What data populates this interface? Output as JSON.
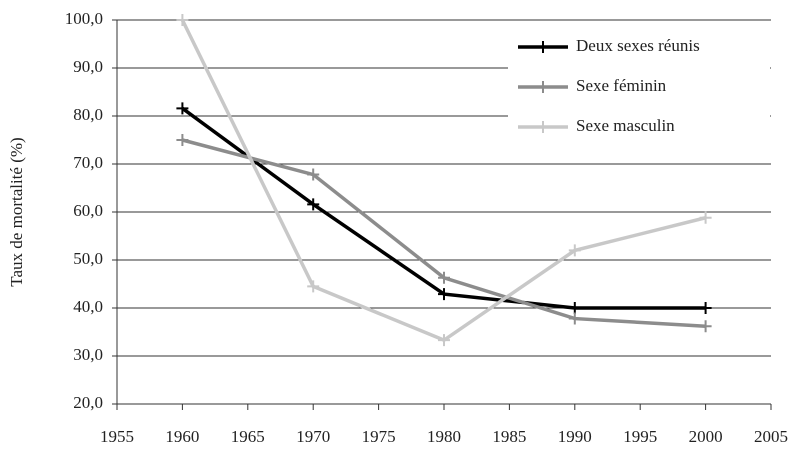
{
  "chart_data": {
    "type": "line",
    "y_label": "Taux de mortalité (%)",
    "x": [
      1960,
      1970,
      1980,
      1990,
      2000
    ],
    "series": [
      {
        "name": "Deux sexes réunis",
        "color": "#000000",
        "values": [
          81.6,
          61.6,
          42.9,
          40.0,
          40.0
        ]
      },
      {
        "name": "Sexe féminin",
        "color": "#8c8c8c",
        "values": [
          75.0,
          67.8,
          46.3,
          37.8,
          36.2
        ]
      },
      {
        "name": "Sexe masculin",
        "color": "#c8c8c8",
        "values": [
          100.0,
          44.5,
          33.3,
          52.0,
          58.8
        ]
      }
    ],
    "xlim": [
      1955,
      2005
    ],
    "xticks": [
      1955,
      1960,
      1965,
      1970,
      1975,
      1980,
      1985,
      1990,
      1995,
      2000,
      2005
    ],
    "ylim": [
      20,
      100
    ],
    "yticks": [
      {
        "value": 20,
        "label": "20,0"
      },
      {
        "value": 30,
        "label": "30,0"
      },
      {
        "value": 40,
        "label": "40,0"
      },
      {
        "value": 50,
        "label": "50,0"
      },
      {
        "value": 60,
        "label": "60,0"
      },
      {
        "value": 70,
        "label": "70,0"
      },
      {
        "value": 80,
        "label": "80,0"
      },
      {
        "value": 90,
        "label": "90,0"
      },
      {
        "value": 100,
        "label": "100,0"
      }
    ],
    "grid": true,
    "legend": "upper right"
  }
}
